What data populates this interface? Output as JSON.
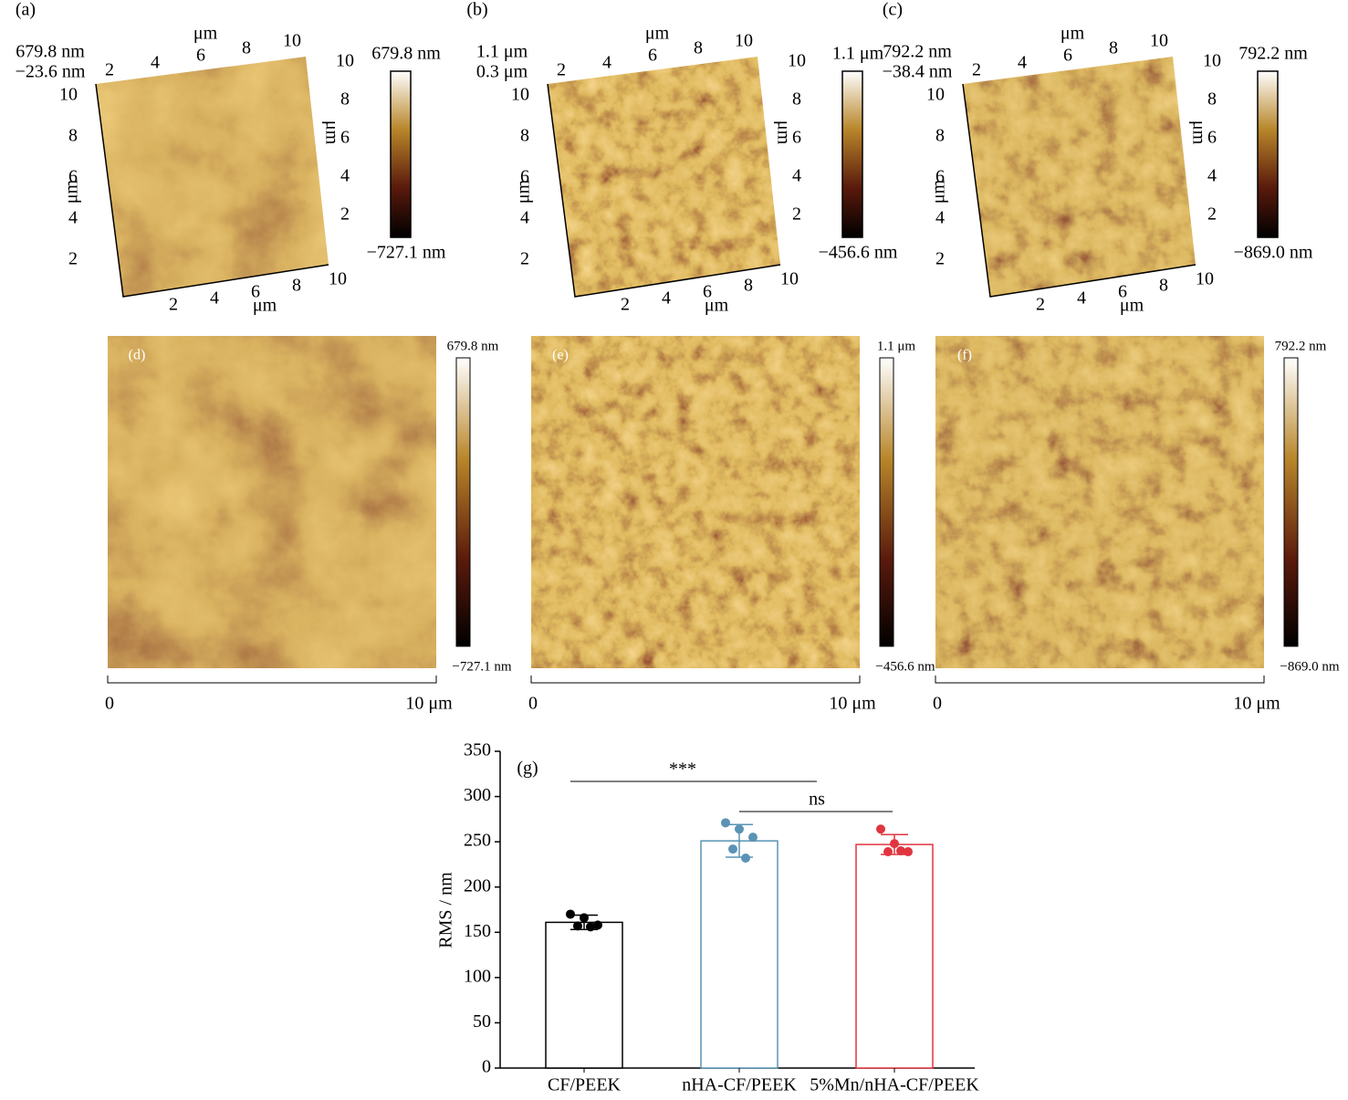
{
  "afm_3d": [
    {
      "label": "(a)",
      "z_top": "679.8 nm",
      "z_bottom": "−23.6 nm",
      "colorbar_max": "679.8 nm",
      "colorbar_min": "−727.1 nm",
      "axis_ticks": [
        2,
        4,
        6,
        8,
        10
      ],
      "axis_unit": "μm"
    },
    {
      "label": "(b)",
      "z_top": "1.1 μm",
      "z_bottom": "0.3 μm",
      "colorbar_max": "1.1 μm",
      "colorbar_min": "−456.6 nm",
      "axis_ticks": [
        2,
        4,
        6,
        8,
        10
      ],
      "axis_unit": "μm"
    },
    {
      "label": "(c)",
      "z_top": "792.2 nm",
      "z_bottom": "−38.4 nm",
      "colorbar_max": "792.2 nm",
      "colorbar_min": "−869.0 nm",
      "axis_ticks": [
        2,
        4,
        6,
        8,
        10
      ],
      "axis_unit": "μm"
    }
  ],
  "afm_2d": [
    {
      "label": "(d)",
      "colorbar_max": "679.8 nm",
      "colorbar_min": "−727.1 nm",
      "scale_start": 0,
      "scale_end": "10 μm"
    },
    {
      "label": "(e)",
      "colorbar_max": "1.1 μm",
      "colorbar_min": "−456.6 nm",
      "scale_start": 0,
      "scale_end": "10 μm"
    },
    {
      "label": "(f)",
      "colorbar_max": "792.2 nm",
      "colorbar_min": "−869.0 nm",
      "scale_start": 0,
      "scale_end": "10 μm"
    }
  ],
  "chart_data": {
    "type": "bar",
    "panel_label": "(g)",
    "ylabel": "RMS / nm",
    "categories": [
      "CF/PEEK",
      "nHA-CF/PEEK",
      "5%Mn/nHA-CF/PEEK"
    ],
    "values": [
      161,
      251,
      247
    ],
    "errors": [
      8,
      18,
      11
    ],
    "points": [
      [
        170,
        166,
        158,
        157,
        156
      ],
      [
        271,
        264,
        255,
        242,
        232
      ],
      [
        264,
        248,
        239,
        239,
        240
      ]
    ],
    "colors": [
      "#000000",
      "#5b93b5",
      "#e0353f"
    ],
    "ylim": [
      0,
      350
    ],
    "yticks": [
      0,
      50,
      100,
      150,
      200,
      250,
      300,
      350
    ],
    "annotations": [
      "***",
      "ns"
    ]
  }
}
